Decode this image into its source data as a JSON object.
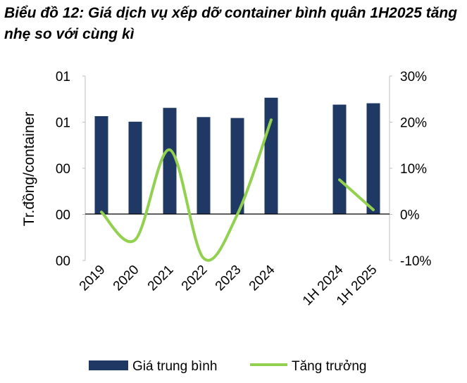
{
  "chart_data": {
    "type": "bar",
    "title": "Biểu đồ 12: Giá dịch vụ xếp dỡ container bình quân 1H2025 tăng nhẹ so với cùng kì",
    "categories": [
      "2019",
      "2020",
      "2021",
      "2022",
      "2023",
      "2024",
      "",
      "1H 2024",
      "1H 2025"
    ],
    "ylabel": "Tr.đồng/container",
    "y_tick_labels": [
      "01",
      "01",
      "00",
      "00",
      "00"
    ],
    "y2_tick_labels": [
      "30%",
      "20%",
      "10%",
      "0%",
      "-10%"
    ],
    "y2lim": [
      -0.1,
      0.3
    ],
    "grid": false,
    "legend_position": "bottom",
    "series": [
      {
        "name": "Giá trung bình",
        "type": "bar",
        "axis": "left",
        "color": "#1f3864",
        "values": [
          0.213,
          0.201,
          0.231,
          0.211,
          0.209,
          0.253,
          null,
          0.238,
          0.241
        ]
      },
      {
        "name": "Tăng trưởng",
        "type": "line",
        "axis": "right",
        "color": "#92d050",
        "smooth": true,
        "values": [
          0.005,
          -0.055,
          0.14,
          -0.095,
          0.0,
          0.205,
          null,
          0.075,
          0.01
        ]
      }
    ]
  }
}
